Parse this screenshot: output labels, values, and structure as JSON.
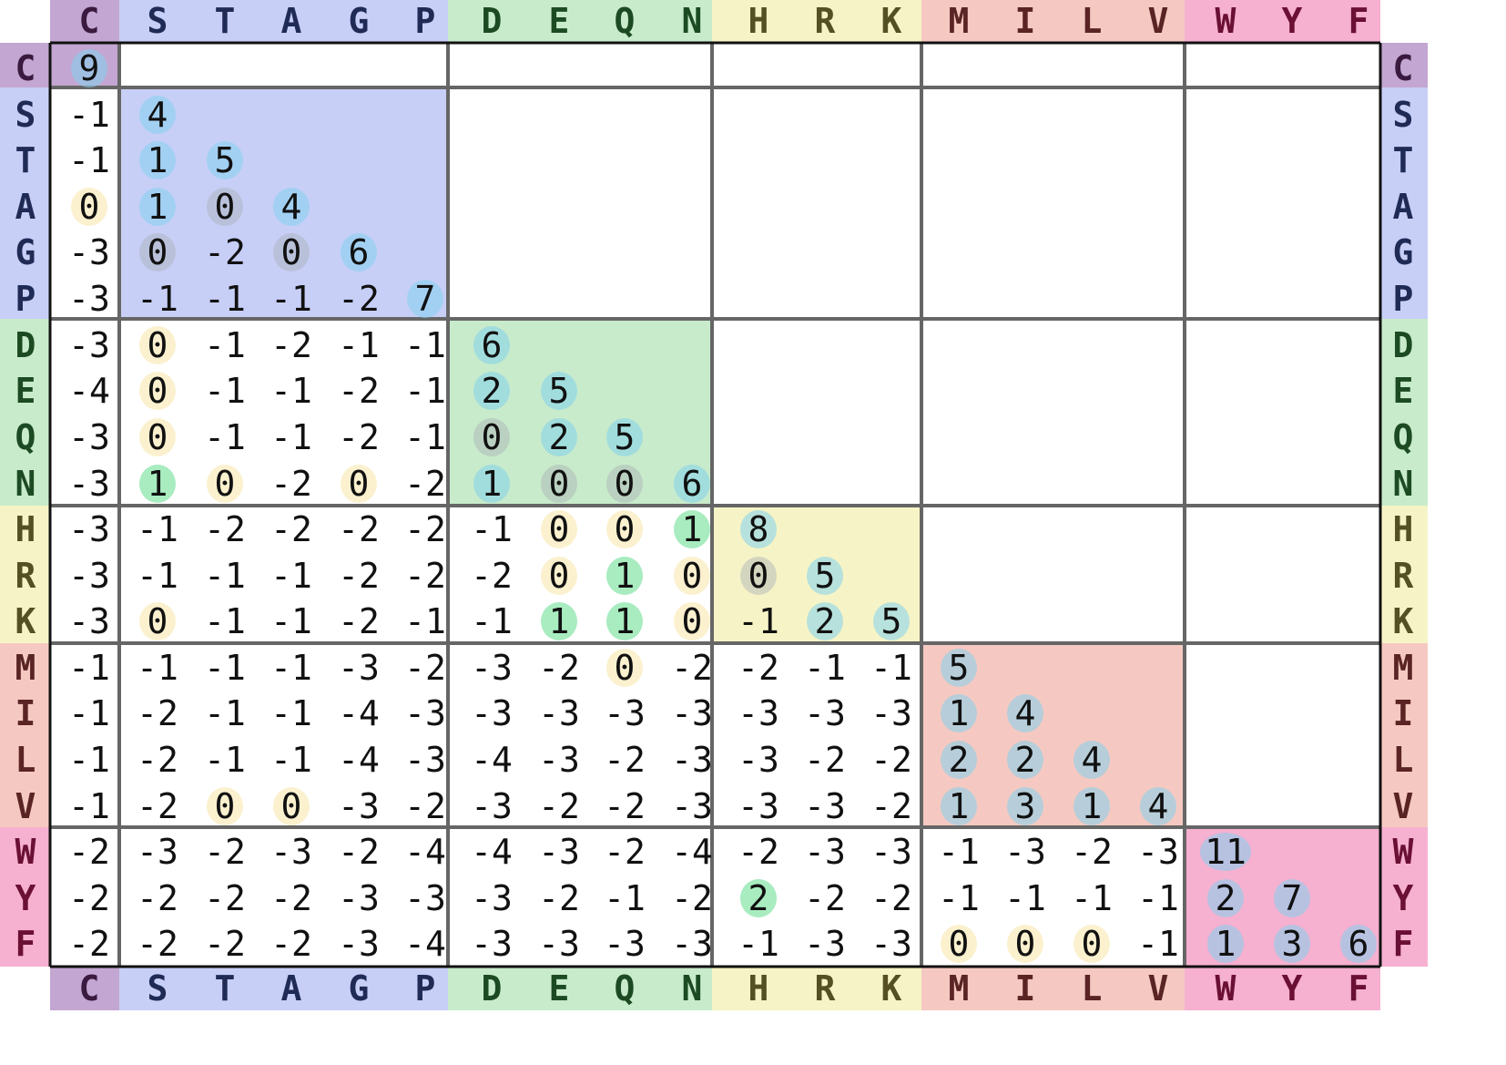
{
  "colors": {
    "groups": [
      "#c3a6d1",
      "#c7cff7",
      "#c8ebcb",
      "#f6f4c6",
      "#f5c9c1",
      "#f6b0d0"
    ],
    "text_dark": [
      "#3a1a3f",
      "#1f2a55",
      "#1c4a22",
      "#545024",
      "#5a2424",
      "#6a1034"
    ],
    "pos_highlight": "#83d2ef",
    "zero_highlight": "#fbf1cf",
    "cross_positive": "#a8ecc0",
    "grid_line": "#666666",
    "frame_line": "#111111"
  },
  "matrix": {
    "amino_acids": [
      "C",
      "S",
      "T",
      "A",
      "G",
      "P",
      "D",
      "E",
      "Q",
      "N",
      "H",
      "R",
      "K",
      "M",
      "I",
      "L",
      "V",
      "W",
      "Y",
      "F"
    ],
    "group_sizes": [
      1,
      5,
      4,
      3,
      4,
      3
    ],
    "rows": [
      [
        "9"
      ],
      [
        "-1",
        "4"
      ],
      [
        "-1",
        "1",
        "5"
      ],
      [
        "0",
        "1",
        "0",
        "4"
      ],
      [
        "-3",
        "0",
        "-2",
        "0",
        "6"
      ],
      [
        "-3",
        "-1",
        "-1",
        "-1",
        "-2",
        "7"
      ],
      [
        "-3",
        "0",
        "-1",
        "-2",
        "-1",
        "-1",
        "6"
      ],
      [
        "-4",
        "0",
        "-1",
        "-1",
        "-2",
        "-1",
        "2",
        "5"
      ],
      [
        "-3",
        "0",
        "-1",
        "-1",
        "-2",
        "-1",
        "0",
        "2",
        "5"
      ],
      [
        "-3",
        "1",
        "0",
        "-2",
        "0",
        "-2",
        "1",
        "0",
        "0",
        "6"
      ],
      [
        "-3",
        "-1",
        "-2",
        "-2",
        "-2",
        "-2",
        "-1",
        "0",
        "0",
        "1",
        "8"
      ],
      [
        "-3",
        "-1",
        "-1",
        "-1",
        "-2",
        "-2",
        "-2",
        "0",
        "1",
        "0",
        "0",
        "5"
      ],
      [
        "-3",
        "0",
        "-1",
        "-1",
        "-2",
        "-1",
        "-1",
        "1",
        "1",
        "0",
        "-1",
        "2",
        "5"
      ],
      [
        "-1",
        "-1",
        "-1",
        "-1",
        "-3",
        "-2",
        "-3",
        "-2",
        "0",
        "-2",
        "-2",
        "-1",
        "-1",
        "5"
      ],
      [
        "-1",
        "-2",
        "-1",
        "-1",
        "-4",
        "-3",
        "-3",
        "-3",
        "-3",
        "-3",
        "-3",
        "-3",
        "-3",
        "1",
        "4"
      ],
      [
        "-1",
        "-2",
        "-1",
        "-1",
        "-4",
        "-3",
        "-4",
        "-3",
        "-2",
        "-3",
        "-3",
        "-2",
        "-2",
        "2",
        "2",
        "4"
      ],
      [
        "-1",
        "-2",
        "0",
        "0",
        "-3",
        "-2",
        "-3",
        "-2",
        "-2",
        "-3",
        "-3",
        "-3",
        "-2",
        "1",
        "3",
        "1",
        "4"
      ],
      [
        "-2",
        "-3",
        "-2",
        "-3",
        "-2",
        "-4",
        "-4",
        "-3",
        "-2",
        "-4",
        "-2",
        "-3",
        "-3",
        "-1",
        "-3",
        "-2",
        "-3",
        "11"
      ],
      [
        "-2",
        "-2",
        "-2",
        "-2",
        "-3",
        "-3",
        "-3",
        "-2",
        "-1",
        "-2",
        "2",
        "-2",
        "-2",
        "-1",
        "-1",
        "-1",
        "-1",
        "2",
        "7"
      ],
      [
        "-2",
        "-2",
        "-2",
        "-2",
        "-3",
        "-4",
        "-3",
        "-3",
        "-3",
        "-3",
        "-1",
        "-3",
        "-3",
        "0",
        "0",
        "0",
        "-1",
        "1",
        "3",
        "6"
      ]
    ]
  }
}
